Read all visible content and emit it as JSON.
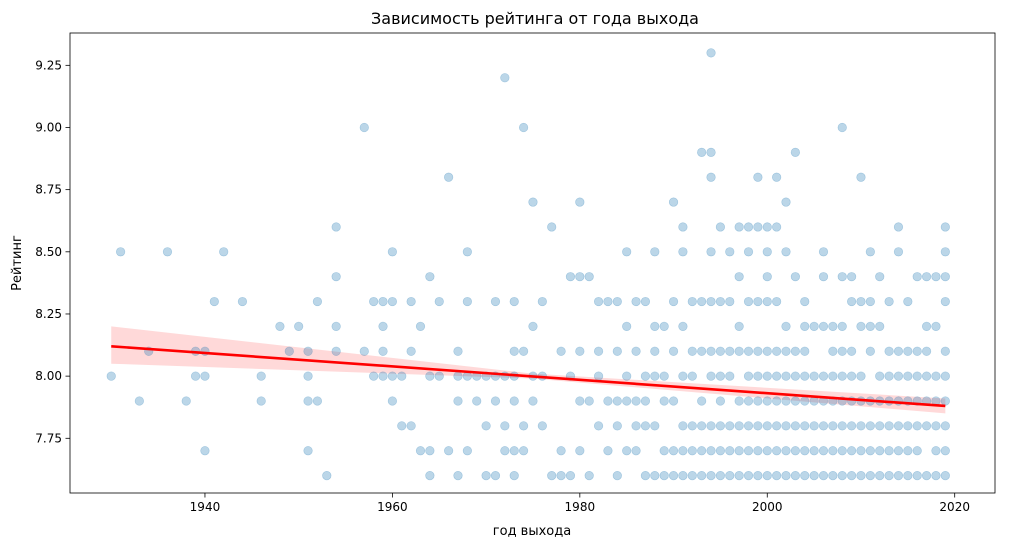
{
  "chart_data": {
    "type": "scatter",
    "title": "Зависимость рейтинга от года выхода",
    "xlabel": "год выхода",
    "ylabel": "Рейтинг",
    "xlim": [
      1925.6,
      2024.3
    ],
    "ylim": [
      7.53,
      9.38
    ],
    "xticks": [
      1940,
      1960,
      1980,
      2000,
      2020
    ],
    "yticks": [
      7.75,
      8.0,
      8.25,
      8.5,
      8.75,
      9.0,
      9.25
    ],
    "ytick_labels": [
      "7.75",
      "8.00",
      "8.25",
      "8.50",
      "8.75",
      "9.00",
      "9.25"
    ],
    "grid": false,
    "colors": {
      "points": "#1f77b4",
      "regression": "#ff0000",
      "band": "#ff9f9f"
    },
    "regression": {
      "x": [
        1930,
        2019
      ],
      "y": [
        8.12,
        7.88
      ]
    },
    "confidence_band": {
      "x": [
        1930,
        1975,
        2019
      ],
      "upper": [
        8.2,
        8.01,
        7.91
      ],
      "lower": [
        8.05,
        7.99,
        7.85
      ]
    },
    "points": [
      [
        1930,
        8.0
      ],
      [
        1931,
        8.5
      ],
      [
        1933,
        7.9
      ],
      [
        1934,
        8.1
      ],
      [
        1936,
        8.5
      ],
      [
        1938,
        7.9
      ],
      [
        1939,
        8.1
      ],
      [
        1940,
        8.1
      ],
      [
        1939,
        8.0
      ],
      [
        1940,
        8.0
      ],
      [
        1940,
        7.7
      ],
      [
        1941,
        8.3
      ],
      [
        1942,
        8.5
      ],
      [
        1944,
        8.3
      ],
      [
        1946,
        8.0
      ],
      [
        1946,
        7.9
      ],
      [
        1948,
        8.2
      ],
      [
        1949,
        8.1
      ],
      [
        1950,
        8.2
      ],
      [
        1951,
        8.1
      ],
      [
        1951,
        8.0
      ],
      [
        1951,
        7.9
      ],
      [
        1951,
        7.7
      ],
      [
        1952,
        7.9
      ],
      [
        1952,
        8.3
      ],
      [
        1953,
        7.6
      ],
      [
        1954,
        8.6
      ],
      [
        1954,
        8.4
      ],
      [
        1954,
        8.2
      ],
      [
        1954,
        8.1
      ],
      [
        1957,
        9.0
      ],
      [
        1957,
        8.1
      ],
      [
        1958,
        8.3
      ],
      [
        1958,
        8.0
      ],
      [
        1959,
        8.3
      ],
      [
        1959,
        8.2
      ],
      [
        1959,
        8.1
      ],
      [
        1959,
        8.0
      ],
      [
        1960,
        8.5
      ],
      [
        1960,
        8.3
      ],
      [
        1960,
        8.0
      ],
      [
        1960,
        7.9
      ],
      [
        1961,
        8.0
      ],
      [
        1961,
        7.8
      ],
      [
        1962,
        8.3
      ],
      [
        1962,
        8.1
      ],
      [
        1962,
        7.8
      ],
      [
        1963,
        8.2
      ],
      [
        1963,
        7.7
      ],
      [
        1964,
        8.4
      ],
      [
        1964,
        8.0
      ],
      [
        1964,
        7.7
      ],
      [
        1964,
        7.6
      ],
      [
        1965,
        8.3
      ],
      [
        1965,
        8.0
      ],
      [
        1966,
        8.8
      ],
      [
        1966,
        7.7
      ],
      [
        1967,
        8.1
      ],
      [
        1967,
        8.0
      ],
      [
        1967,
        7.9
      ],
      [
        1967,
        7.6
      ],
      [
        1968,
        8.5
      ],
      [
        1968,
        8.3
      ],
      [
        1968,
        8.0
      ],
      [
        1968,
        7.7
      ],
      [
        1969,
        8.0
      ],
      [
        1969,
        7.9
      ],
      [
        1970,
        8.0
      ],
      [
        1970,
        7.8
      ],
      [
        1970,
        7.6
      ],
      [
        1971,
        8.3
      ],
      [
        1971,
        8.0
      ],
      [
        1971,
        7.9
      ],
      [
        1971,
        7.6
      ],
      [
        1972,
        9.2
      ],
      [
        1972,
        8.0
      ],
      [
        1972,
        7.7
      ],
      [
        1972,
        7.8
      ],
      [
        1973,
        8.3
      ],
      [
        1973,
        8.1
      ],
      [
        1973,
        8.0
      ],
      [
        1973,
        7.9
      ],
      [
        1973,
        7.7
      ],
      [
        1973,
        7.6
      ],
      [
        1974,
        9.0
      ],
      [
        1974,
        8.1
      ],
      [
        1974,
        7.8
      ],
      [
        1974,
        7.7
      ],
      [
        1975,
        8.7
      ],
      [
        1975,
        8.2
      ],
      [
        1975,
        8.0
      ],
      [
        1975,
        7.9
      ],
      [
        1976,
        8.3
      ],
      [
        1976,
        8.0
      ],
      [
        1976,
        7.8
      ],
      [
        1977,
        8.6
      ],
      [
        1977,
        7.6
      ],
      [
        1978,
        8.1
      ],
      [
        1978,
        7.7
      ],
      [
        1978,
        7.6
      ],
      [
        1979,
        8.4
      ],
      [
        1979,
        8.0
      ],
      [
        1979,
        7.6
      ],
      [
        1980,
        8.7
      ],
      [
        1980,
        8.4
      ],
      [
        1980,
        8.1
      ],
      [
        1980,
        7.9
      ],
      [
        1980,
        7.7
      ],
      [
        1981,
        8.4
      ],
      [
        1981,
        7.9
      ],
      [
        1981,
        7.6
      ],
      [
        1982,
        8.3
      ],
      [
        1982,
        8.1
      ],
      [
        1982,
        8.0
      ],
      [
        1982,
        7.8
      ],
      [
        1983,
        8.3
      ],
      [
        1983,
        7.9
      ],
      [
        1983,
        7.7
      ],
      [
        1984,
        8.3
      ],
      [
        1984,
        8.1
      ],
      [
        1984,
        7.9
      ],
      [
        1984,
        7.8
      ],
      [
        1984,
        7.6
      ],
      [
        1985,
        8.5
      ],
      [
        1985,
        8.2
      ],
      [
        1985,
        8.0
      ],
      [
        1985,
        7.9
      ],
      [
        1985,
        7.7
      ],
      [
        1986,
        8.3
      ],
      [
        1986,
        8.1
      ],
      [
        1986,
        7.9
      ],
      [
        1986,
        7.8
      ],
      [
        1986,
        7.7
      ],
      [
        1987,
        8.3
      ],
      [
        1987,
        8.0
      ],
      [
        1987,
        7.9
      ],
      [
        1987,
        7.8
      ],
      [
        1987,
        7.6
      ],
      [
        1988,
        8.5
      ],
      [
        1988,
        8.2
      ],
      [
        1988,
        8.1
      ],
      [
        1988,
        8.0
      ],
      [
        1988,
        7.8
      ],
      [
        1988,
        7.6
      ],
      [
        1989,
        8.2
      ],
      [
        1989,
        8.0
      ],
      [
        1989,
        7.9
      ],
      [
        1989,
        7.7
      ],
      [
        1989,
        7.6
      ],
      [
        1990,
        8.7
      ],
      [
        1990,
        8.3
      ],
      [
        1990,
        8.1
      ],
      [
        1990,
        7.9
      ],
      [
        1990,
        7.7
      ],
      [
        1990,
        7.6
      ],
      [
        1991,
        8.6
      ],
      [
        1991,
        8.5
      ],
      [
        1991,
        8.2
      ],
      [
        1991,
        8.0
      ],
      [
        1991,
        7.8
      ],
      [
        1991,
        7.7
      ],
      [
        1991,
        7.6
      ],
      [
        1992,
        8.3
      ],
      [
        1992,
        8.1
      ],
      [
        1992,
        8.0
      ],
      [
        1992,
        7.8
      ],
      [
        1992,
        7.7
      ],
      [
        1992,
        7.6
      ],
      [
        1993,
        8.9
      ],
      [
        1993,
        8.3
      ],
      [
        1993,
        8.1
      ],
      [
        1993,
        7.9
      ],
      [
        1993,
        7.8
      ],
      [
        1993,
        7.7
      ],
      [
        1993,
        7.6
      ],
      [
        1994,
        9.3
      ],
      [
        1994,
        8.9
      ],
      [
        1994,
        8.8
      ],
      [
        1994,
        8.5
      ],
      [
        1994,
        8.3
      ],
      [
        1994,
        8.1
      ],
      [
        1994,
        8.0
      ],
      [
        1994,
        7.8
      ],
      [
        1994,
        7.7
      ],
      [
        1994,
        7.6
      ],
      [
        1995,
        8.6
      ],
      [
        1995,
        8.3
      ],
      [
        1995,
        8.1
      ],
      [
        1995,
        8.0
      ],
      [
        1995,
        7.9
      ],
      [
        1995,
        7.8
      ],
      [
        1995,
        7.7
      ],
      [
        1995,
        7.6
      ],
      [
        1996,
        8.5
      ],
      [
        1996,
        8.3
      ],
      [
        1996,
        8.1
      ],
      [
        1996,
        8.0
      ],
      [
        1996,
        7.8
      ],
      [
        1996,
        7.7
      ],
      [
        1996,
        7.6
      ],
      [
        1997,
        8.6
      ],
      [
        1997,
        8.4
      ],
      [
        1997,
        8.2
      ],
      [
        1997,
        8.1
      ],
      [
        1997,
        7.9
      ],
      [
        1997,
        7.8
      ],
      [
        1997,
        7.7
      ],
      [
        1997,
        7.6
      ],
      [
        1998,
        8.6
      ],
      [
        1998,
        8.5
      ],
      [
        1998,
        8.3
      ],
      [
        1998,
        8.1
      ],
      [
        1998,
        8.0
      ],
      [
        1998,
        7.9
      ],
      [
        1998,
        7.8
      ],
      [
        1998,
        7.7
      ],
      [
        1998,
        7.6
      ],
      [
        1999,
        8.8
      ],
      [
        1999,
        8.6
      ],
      [
        1999,
        8.3
      ],
      [
        1999,
        8.1
      ],
      [
        1999,
        8.0
      ],
      [
        1999,
        7.9
      ],
      [
        1999,
        7.8
      ],
      [
        1999,
        7.7
      ],
      [
        1999,
        7.6
      ],
      [
        2000,
        8.6
      ],
      [
        2000,
        8.5
      ],
      [
        2000,
        8.4
      ],
      [
        2000,
        8.3
      ],
      [
        2000,
        8.1
      ],
      [
        2000,
        8.0
      ],
      [
        2000,
        7.9
      ],
      [
        2000,
        7.8
      ],
      [
        2000,
        7.7
      ],
      [
        2000,
        7.6
      ],
      [
        2001,
        8.8
      ],
      [
        2001,
        8.6
      ],
      [
        2001,
        8.3
      ],
      [
        2001,
        8.1
      ],
      [
        2001,
        8.0
      ],
      [
        2001,
        7.9
      ],
      [
        2001,
        7.8
      ],
      [
        2001,
        7.7
      ],
      [
        2001,
        7.6
      ],
      [
        2002,
        8.7
      ],
      [
        2002,
        8.5
      ],
      [
        2002,
        8.2
      ],
      [
        2002,
        8.1
      ],
      [
        2002,
        8.0
      ],
      [
        2002,
        7.9
      ],
      [
        2002,
        7.8
      ],
      [
        2002,
        7.7
      ],
      [
        2002,
        7.6
      ],
      [
        2003,
        8.9
      ],
      [
        2003,
        8.4
      ],
      [
        2003,
        8.1
      ],
      [
        2003,
        8.0
      ],
      [
        2003,
        7.9
      ],
      [
        2003,
        7.8
      ],
      [
        2003,
        7.7
      ],
      [
        2003,
        7.6
      ],
      [
        2004,
        8.3
      ],
      [
        2004,
        8.2
      ],
      [
        2004,
        8.1
      ],
      [
        2004,
        8.0
      ],
      [
        2004,
        7.9
      ],
      [
        2004,
        7.8
      ],
      [
        2004,
        7.7
      ],
      [
        2004,
        7.6
      ],
      [
        2005,
        8.2
      ],
      [
        2005,
        8.0
      ],
      [
        2005,
        7.9
      ],
      [
        2005,
        7.8
      ],
      [
        2005,
        7.7
      ],
      [
        2005,
        7.6
      ],
      [
        2006,
        8.5
      ],
      [
        2006,
        8.4
      ],
      [
        2006,
        8.2
      ],
      [
        2006,
        8.0
      ],
      [
        2006,
        7.9
      ],
      [
        2006,
        7.8
      ],
      [
        2006,
        7.7
      ],
      [
        2006,
        7.6
      ],
      [
        2007,
        8.2
      ],
      [
        2007,
        8.1
      ],
      [
        2007,
        8.0
      ],
      [
        2007,
        7.9
      ],
      [
        2007,
        7.8
      ],
      [
        2007,
        7.7
      ],
      [
        2007,
        7.6
      ],
      [
        2008,
        9.0
      ],
      [
        2008,
        8.4
      ],
      [
        2008,
        8.2
      ],
      [
        2008,
        8.1
      ],
      [
        2008,
        8.0
      ],
      [
        2008,
        7.9
      ],
      [
        2008,
        7.8
      ],
      [
        2008,
        7.7
      ],
      [
        2008,
        7.6
      ],
      [
        2009,
        8.4
      ],
      [
        2009,
        8.3
      ],
      [
        2009,
        8.1
      ],
      [
        2009,
        8.0
      ],
      [
        2009,
        7.9
      ],
      [
        2009,
        7.8
      ],
      [
        2009,
        7.7
      ],
      [
        2009,
        7.6
      ],
      [
        2010,
        8.8
      ],
      [
        2010,
        8.3
      ],
      [
        2010,
        8.2
      ],
      [
        2010,
        8.0
      ],
      [
        2010,
        7.9
      ],
      [
        2010,
        7.8
      ],
      [
        2010,
        7.7
      ],
      [
        2010,
        7.6
      ],
      [
        2011,
        8.5
      ],
      [
        2011,
        8.3
      ],
      [
        2011,
        8.2
      ],
      [
        2011,
        8.1
      ],
      [
        2011,
        7.9
      ],
      [
        2011,
        7.8
      ],
      [
        2011,
        7.7
      ],
      [
        2011,
        7.6
      ],
      [
        2012,
        8.4
      ],
      [
        2012,
        8.2
      ],
      [
        2012,
        8.0
      ],
      [
        2012,
        7.9
      ],
      [
        2012,
        7.8
      ],
      [
        2012,
        7.7
      ],
      [
        2012,
        7.6
      ],
      [
        2013,
        8.3
      ],
      [
        2013,
        8.1
      ],
      [
        2013,
        8.0
      ],
      [
        2013,
        7.9
      ],
      [
        2013,
        7.8
      ],
      [
        2013,
        7.7
      ],
      [
        2013,
        7.6
      ],
      [
        2014,
        8.6
      ],
      [
        2014,
        8.5
      ],
      [
        2014,
        8.1
      ],
      [
        2014,
        8.0
      ],
      [
        2014,
        7.9
      ],
      [
        2014,
        7.8
      ],
      [
        2014,
        7.7
      ],
      [
        2014,
        7.6
      ],
      [
        2015,
        8.3
      ],
      [
        2015,
        8.1
      ],
      [
        2015,
        8.0
      ],
      [
        2015,
        7.9
      ],
      [
        2015,
        7.8
      ],
      [
        2015,
        7.7
      ],
      [
        2015,
        7.6
      ],
      [
        2016,
        8.4
      ],
      [
        2016,
        8.1
      ],
      [
        2016,
        8.0
      ],
      [
        2016,
        7.9
      ],
      [
        2016,
        7.8
      ],
      [
        2016,
        7.7
      ],
      [
        2016,
        7.6
      ],
      [
        2017,
        8.4
      ],
      [
        2017,
        8.2
      ],
      [
        2017,
        8.1
      ],
      [
        2017,
        8.0
      ],
      [
        2017,
        7.9
      ],
      [
        2017,
        7.8
      ],
      [
        2017,
        7.6
      ],
      [
        2018,
        8.4
      ],
      [
        2018,
        8.2
      ],
      [
        2018,
        8.0
      ],
      [
        2018,
        7.9
      ],
      [
        2018,
        7.8
      ],
      [
        2018,
        7.7
      ],
      [
        2018,
        7.6
      ],
      [
        2019,
        8.6
      ],
      [
        2019,
        8.5
      ],
      [
        2019,
        8.4
      ],
      [
        2019,
        8.3
      ],
      [
        2019,
        8.1
      ],
      [
        2019,
        8.0
      ],
      [
        2019,
        7.9
      ],
      [
        2019,
        7.8
      ],
      [
        2019,
        7.7
      ],
      [
        2019,
        7.6
      ]
    ]
  }
}
